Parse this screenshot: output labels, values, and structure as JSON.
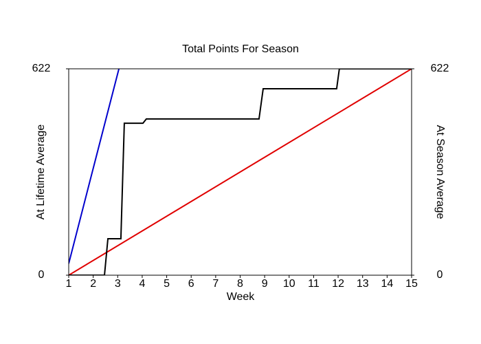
{
  "chart_data": {
    "type": "line",
    "title": "Total Points For Season",
    "xlabel": "Week",
    "ylabel": "At Lifetime Average",
    "y2label": "At Season Average",
    "xlim": [
      1,
      15
    ],
    "xticks": [
      1,
      2,
      3,
      4,
      5,
      6,
      7,
      8,
      9,
      10,
      11,
      12,
      13,
      14,
      15
    ],
    "ylim": [
      0,
      622
    ],
    "yticks": [
      0,
      622
    ],
    "y2lim": [
      0,
      622
    ],
    "y2ticks": [
      0,
      622
    ],
    "series": [
      {
        "name": "At Lifetime Average",
        "color": "#0000cc",
        "axis": "y",
        "x": [
          1,
          2,
          3.05
        ],
        "values": [
          35,
          322,
          622
        ]
      },
      {
        "name": "At Season Average",
        "color": "#e00000",
        "axis": "y2",
        "x": [
          1,
          15
        ],
        "values": [
          0,
          622
        ]
      },
      {
        "color": "#000000",
        "axis": "y",
        "x": [
          1,
          2.46,
          2.6,
          3.13,
          3.27,
          4.03,
          4.17,
          8.77,
          8.94,
          11.94,
          12.05,
          15
        ],
        "values": [
          0,
          0,
          110,
          110,
          458,
          458,
          471,
          471,
          562,
          562,
          622,
          622
        ]
      }
    ]
  }
}
